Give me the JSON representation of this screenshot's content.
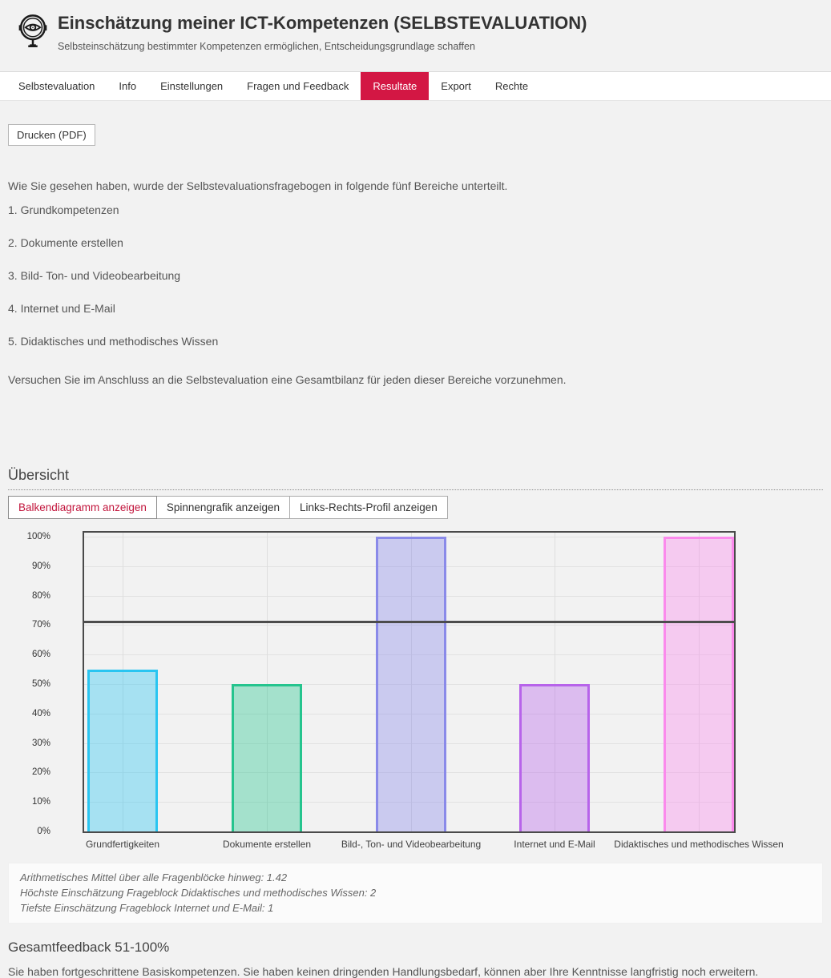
{
  "header": {
    "title": "Einschätzung meiner ICT-Kompetenzen (SELBSTEVALUATION)",
    "subtitle": "Selbsteinschätzung bestimmter Kompetenzen ermöglichen, Entscheidungsgrundlage schaffen"
  },
  "nav": {
    "active_color": "#d31744",
    "tabs": [
      {
        "label": "Selbstevaluation",
        "active": false
      },
      {
        "label": "Info",
        "active": false
      },
      {
        "label": "Einstellungen",
        "active": false
      },
      {
        "label": "Fragen und Feedback",
        "active": false
      },
      {
        "label": "Resultate",
        "active": true
      },
      {
        "label": "Export",
        "active": false
      },
      {
        "label": "Rechte",
        "active": false
      }
    ]
  },
  "toolbar": {
    "print_label": "Drucken (PDF)"
  },
  "intro": {
    "lead": "Wie Sie gesehen haben, wurde der Selbstevaluationsfragebogen in folgende fünf Bereiche unterteilt.",
    "areas": [
      "1. Grundkompetenzen",
      "2. Dokumente erstellen",
      "3. Bild- Ton- und Videobearbeitung",
      "4. Internet und E-Mail",
      "5. Didaktisches und methodisches Wissen"
    ],
    "outro": "Versuchen Sie im Anschluss an die Selbstevaluation eine Gesamtbilanz für jeden dieser Bereiche vorzunehmen."
  },
  "overview": {
    "heading": "Übersicht",
    "buttons": [
      {
        "label": "Balkendiagramm anzeigen",
        "active": true
      },
      {
        "label": "Spinnengrafik anzeigen",
        "active": false
      },
      {
        "label": "Links-Rechts-Profil anzeigen",
        "active": false
      }
    ]
  },
  "chart_data": {
    "type": "bar",
    "categories": [
      "Grundfertigkeiten",
      "Dokumente erstellen",
      "Bild-, Ton- und Videobearbeitung",
      "Internet und E-Mail",
      "Didaktisches und methodisches Wissen"
    ],
    "values": [
      55,
      50,
      100,
      50,
      100
    ],
    "unit": "%",
    "ylim": [
      0,
      102
    ],
    "yticks": [
      0,
      10,
      20,
      30,
      40,
      50,
      60,
      70,
      80,
      90,
      100
    ],
    "ytick_labels": [
      "0%",
      "10%",
      "20%",
      "30%",
      "40%",
      "50%",
      "60%",
      "70%",
      "80%",
      "90%",
      "100%"
    ],
    "grid": true,
    "reference_line_value": 71,
    "bar_colors": [
      {
        "border": "#29c5f1",
        "fill": "rgba(41,197,241,0.38)"
      },
      {
        "border": "#25c48e",
        "fill": "rgba(37,196,142,0.38)"
      },
      {
        "border": "#8a8ae9",
        "fill": "rgba(138,138,233,0.38)"
      },
      {
        "border": "#b763ea",
        "fill": "rgba(183,99,234,0.38)"
      },
      {
        "border": "#fb8aec",
        "fill": "rgba(251,138,236,0.38)"
      }
    ],
    "title": ""
  },
  "summary": {
    "lines": [
      "Arithmetisches Mittel über alle Fragenblöcke hinweg: 1.42",
      "Höchste Einschätzung Frageblock Didaktisches und methodisches Wissen: 2",
      "Tiefste Einschätzung Frageblock Internet und E-Mail: 1"
    ]
  },
  "feedback": {
    "heading": "Gesamtfeedback 51-100%",
    "text": "Sie haben fortgeschrittene Basiskompetenzen. Sie haben keinen dringenden Handlungsbedarf, können aber Ihre Kenntnisse langfristig noch erweitern."
  }
}
